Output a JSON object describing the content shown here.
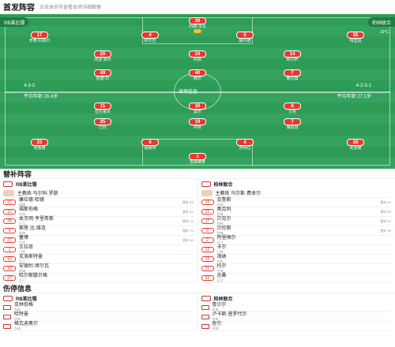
{
  "header": {
    "title": "首发阵容",
    "subtitle": "点击球员可查看本场详细数据"
  },
  "home": {
    "name": "RB莱比锡",
    "formation": "4-3-3",
    "coach": "主教练 马尔科·罗斯",
    "players": [
      {
        "num": "26",
        "name": "约纳·沃夫",
        "rating": "6.3"
      },
      {
        "num": "17",
        "name": "罗博·科佩尔",
        "rating": ""
      },
      {
        "num": "4",
        "name": "阿坎吉",
        "rating": ""
      },
      {
        "num": "5",
        "name": "赫尔德",
        "rating": ""
      },
      {
        "num": "35",
        "name": "特里珀",
        "rating": ""
      },
      {
        "num": "20",
        "name": "阿波·默尔",
        "rating": ""
      },
      {
        "num": "24",
        "name": "利默",
        "rating": ""
      },
      {
        "num": "14",
        "name": "阿尔萨",
        "rating": ""
      },
      {
        "num": "49",
        "name": "凯德·尔",
        "rating": ""
      },
      {
        "num": "40",
        "name": "西芒",
        "rating": ""
      },
      {
        "num": "7",
        "name": "奥尔莫",
        "rating": ""
      }
    ]
  },
  "away": {
    "name": "柏林联合",
    "formation": "4-2-3-1",
    "coach": "主教练 乌尔斯·费舍尔",
    "players": [
      {
        "num": "1",
        "name": "吉库维奇",
        "rating": ""
      },
      {
        "num": "23",
        "name": "克鲁格",
        "rating": ""
      },
      {
        "num": "6",
        "name": "福格特",
        "rating": ""
      },
      {
        "num": "4",
        "name": "奈特拉",
        "rating": ""
      },
      {
        "num": "39",
        "name": "克诺赫",
        "rating": ""
      },
      {
        "num": "25",
        "name": "巴托",
        "rating": ""
      },
      {
        "num": "19",
        "name": "阿劳",
        "rating": ""
      },
      {
        "num": "7",
        "name": "海伯恩",
        "rating": ""
      },
      {
        "num": "11",
        "name": "拉伦霍夫",
        "rating": ""
      },
      {
        "num": "30",
        "name": "莫尔",
        "rating": ""
      },
      {
        "num": "8",
        "name": "贝克",
        "rating": ""
      }
    ]
  },
  "field_text": {
    "center": "球场信息",
    "weather": "10°C",
    "left_tag": "RB莱比锡",
    "right_tag": "柏林联合",
    "left_form": "4-3-3",
    "right_form": "4-2-3-1",
    "left_avg": "平均年龄 26.4岁",
    "right_avg": "平均年龄 27.1岁"
  },
  "bench_title": "替补阵容",
  "bench": {
    "home": {
      "name": "RB莱比锡",
      "coach": "主教练 马尔科·罗斯",
      "players": [
        {
          "num": "11",
          "name": "康拉德·哈德",
          "pos": "前锋",
          "sub": "替补 84'"
        },
        {
          "num": "10",
          "name": "福斯伯格",
          "pos": "中场",
          "sub": "替补 84'"
        },
        {
          "num": "39",
          "name": "本杰明·亨里希斯",
          "pos": "后卫",
          "sub": "替补 70'"
        },
        {
          "num": "9",
          "name": "索恩·比·维克",
          "pos": "前锋",
          "sub": "替补 70'"
        },
        {
          "num": "27",
          "name": "塞博",
          "pos": "中场",
          "sub": "替补 90'"
        },
        {
          "num": "1",
          "name": "古拉奇",
          "pos": "门将",
          "sub": ""
        },
        {
          "num": "16",
          "name": "克洛斯特曼",
          "pos": "后卫",
          "sub": ""
        },
        {
          "num": "19",
          "name": "安德烈·席尔瓦",
          "pos": "前锋",
          "sub": ""
        },
        {
          "num": "23",
          "name": "哈尔斯滕贝格",
          "pos": "后卫",
          "sub": ""
        }
      ]
    },
    "away": {
      "name": "柏林联合",
      "coach": "主教练 乌尔斯·费舍尔",
      "players": [
        {
          "num": "10",
          "name": "克鲁斯",
          "pos": "中场",
          "sub": "替补 61'"
        },
        {
          "num": "20",
          "name": "奥克利",
          "pos": "前锋",
          "sub": "替补 67'"
        },
        {
          "num": "17",
          "name": "贝克尔",
          "pos": "前锋",
          "sub": "替补 87'"
        },
        {
          "num": "9",
          "name": "贝伦斯",
          "pos": "前锋",
          "sub": "替补 90'"
        },
        {
          "num": "2",
          "name": "特里梅尔",
          "pos": "后卫",
          "sub": ""
        },
        {
          "num": "12",
          "name": "卡尔",
          "pos": "门将",
          "sub": ""
        },
        {
          "num": "13",
          "name": "海纳",
          "pos": "中场",
          "sub": ""
        },
        {
          "num": "21",
          "name": "托尔",
          "pos": "中场",
          "sub": ""
        },
        {
          "num": "33",
          "name": "吉桑",
          "pos": "后卫",
          "sub": ""
        }
      ]
    }
  },
  "injury_title": "伤停信息",
  "injury": {
    "home": {
      "name": "RB莱比锡",
      "items": [
        {
          "name": "克林伯格",
          "status": "伤病"
        },
        {
          "name": "哈特曼",
          "status": "伤病"
        },
        {
          "name": "格瓦迪奥尔",
          "status": "伤病"
        }
      ]
    },
    "away": {
      "name": "柏林联合",
      "items": [
        {
          "name": "鲁贝尔",
          "status": "伤病"
        },
        {
          "name": "卢卡斯·普罗代尔",
          "status": "伤病"
        },
        {
          "name": "佐尔",
          "status": "停赛"
        }
      ]
    }
  }
}
